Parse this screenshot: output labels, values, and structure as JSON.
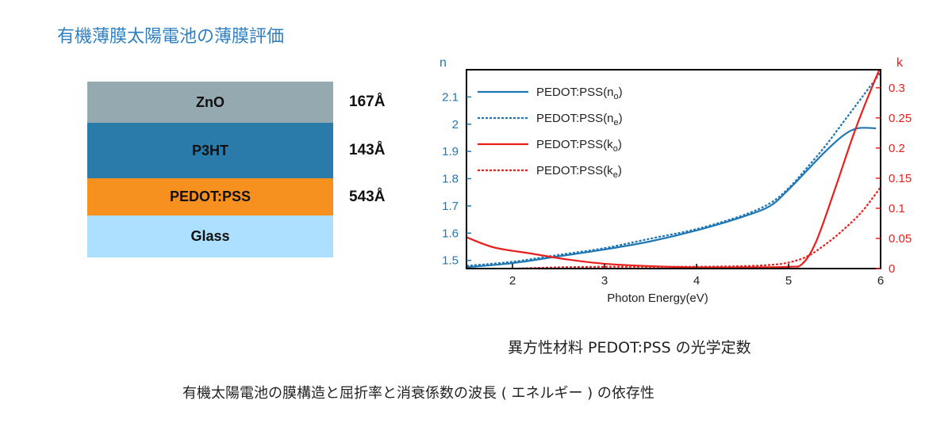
{
  "page_title": "有機薄膜太陽電池の薄膜評価",
  "layer_stack": [
    {
      "name": "ZnO",
      "thickness": "167Å",
      "color": "#95a9b0"
    },
    {
      "name": "P3HT",
      "thickness": "143Å",
      "color": "#2b7baa"
    },
    {
      "name": "PEDOT:PSS",
      "thickness": "543Å",
      "color": "#f6911f"
    },
    {
      "name": "Glass",
      "thickness": "",
      "color": "#ade0ff"
    }
  ],
  "chart_caption": "異方性材料 PEDOT:PSS の光学定数",
  "bottom_caption": "有機太陽電池の膜構造と屈折率と消衰係数の波長 ( エネルギー ) の依存性",
  "chart_data": {
    "type": "line",
    "xlabel": "Photon Energy(eV)",
    "ylabel_left": "n",
    "ylabel_right": "k",
    "xlim": [
      1.5,
      6.0
    ],
    "ylim_left": [
      1.47,
      2.2
    ],
    "ylim_right": [
      0,
      0.33
    ],
    "x_ticks": [
      2,
      3,
      4,
      5,
      6
    ],
    "y_ticks_left": [
      1.5,
      1.6,
      1.7,
      1.8,
      1.9,
      2.0,
      2.1
    ],
    "y_tick_labels_left": [
      "1.5",
      "1.6",
      "1.7",
      "1.8",
      "1.9",
      "2",
      "2.1"
    ],
    "y_ticks_right": [
      0,
      0.05,
      0.1,
      0.15,
      0.2,
      0.25,
      0.3
    ],
    "y_tick_labels_right": [
      "0",
      "0.05",
      "0.1",
      "0.15",
      "0.2",
      "0.25",
      "0.3"
    ],
    "left_axis_color": "#1f77b4",
    "right_axis_color": "#e8201c",
    "legend_position": "top-left",
    "series": [
      {
        "name": "PEDOT:PSS(n",
        "sub": "o",
        "axis": "left",
        "color": "#1f77b4",
        "dash": false,
        "x": [
          1.5,
          2.0,
          2.5,
          3.0,
          3.5,
          4.0,
          4.5,
          4.8,
          5.0,
          5.2,
          5.4,
          5.6,
          5.75,
          5.95
        ],
        "y": [
          1.475,
          1.49,
          1.515,
          1.54,
          1.57,
          1.61,
          1.66,
          1.7,
          1.76,
          1.83,
          1.9,
          1.96,
          1.985,
          1.985
        ]
      },
      {
        "name": "PEDOT:PSS(n",
        "sub": "e",
        "axis": "left",
        "color": "#1f77b4",
        "dash": true,
        "x": [
          1.5,
          2.0,
          2.5,
          3.0,
          3.5,
          4.0,
          4.5,
          4.8,
          5.0,
          5.2,
          5.4,
          5.6,
          5.8,
          6.0
        ],
        "y": [
          1.48,
          1.495,
          1.52,
          1.545,
          1.58,
          1.615,
          1.665,
          1.71,
          1.765,
          1.84,
          1.92,
          2.01,
          2.1,
          2.19
        ]
      },
      {
        "name": "PEDOT:PSS(k",
        "sub": "o",
        "axis": "right",
        "color": "#e8201c",
        "dash": false,
        "x": [
          1.5,
          1.8,
          2.2,
          2.6,
          3.0,
          3.5,
          4.0,
          4.5,
          5.0,
          5.15,
          5.3,
          5.5,
          5.7,
          5.85,
          6.0
        ],
        "y": [
          0.052,
          0.035,
          0.025,
          0.015,
          0.008,
          0.004,
          0.002,
          0.002,
          0.003,
          0.008,
          0.045,
          0.13,
          0.22,
          0.28,
          0.335
        ]
      },
      {
        "name": "PEDOT:PSS(k",
        "sub": "e",
        "axis": "right",
        "color": "#e8201c",
        "dash": true,
        "x": [
          1.5,
          2.0,
          2.5,
          3.0,
          3.5,
          4.0,
          4.5,
          4.8,
          5.0,
          5.2,
          5.4,
          5.6,
          5.8,
          6.0
        ],
        "y": [
          0.0,
          0.0,
          0.002,
          0.003,
          0.003,
          0.003,
          0.004,
          0.006,
          0.01,
          0.02,
          0.04,
          0.065,
          0.095,
          0.135
        ]
      }
    ]
  }
}
